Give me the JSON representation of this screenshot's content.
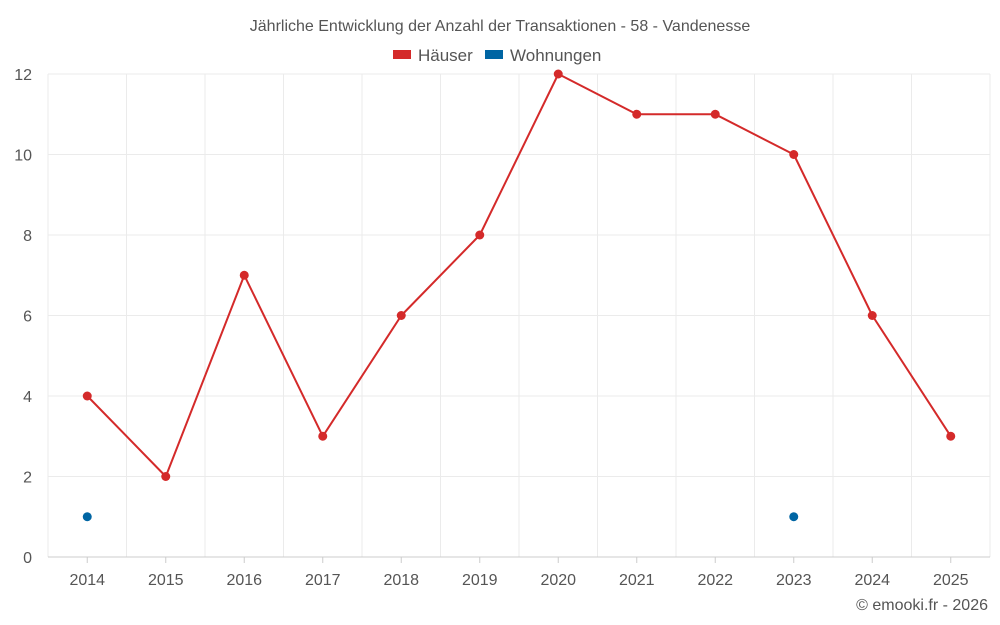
{
  "chart_data": {
    "type": "line",
    "title": "Jährliche Entwicklung der Anzahl der Transaktionen - 58 - Vandenesse",
    "categories": [
      "2014",
      "2015",
      "2016",
      "2017",
      "2018",
      "2019",
      "2020",
      "2021",
      "2022",
      "2023",
      "2024",
      "2025"
    ],
    "series": [
      {
        "name": "Häuser",
        "color": "#d42a2a",
        "values": [
          4,
          2,
          7,
          3,
          6,
          8,
          12,
          11,
          11,
          10,
          6,
          3
        ]
      },
      {
        "name": "Wohnungen",
        "color": "#0065a3",
        "values": [
          1,
          null,
          null,
          null,
          null,
          null,
          null,
          null,
          null,
          1,
          null,
          null
        ]
      }
    ],
    "yticks": [
      "0",
      "2",
      "4",
      "6",
      "8",
      "10",
      "12"
    ],
    "ylim": [
      0,
      12
    ],
    "grid": true,
    "legend_position": "top-center"
  },
  "credit": "© emooki.fr - 2026"
}
